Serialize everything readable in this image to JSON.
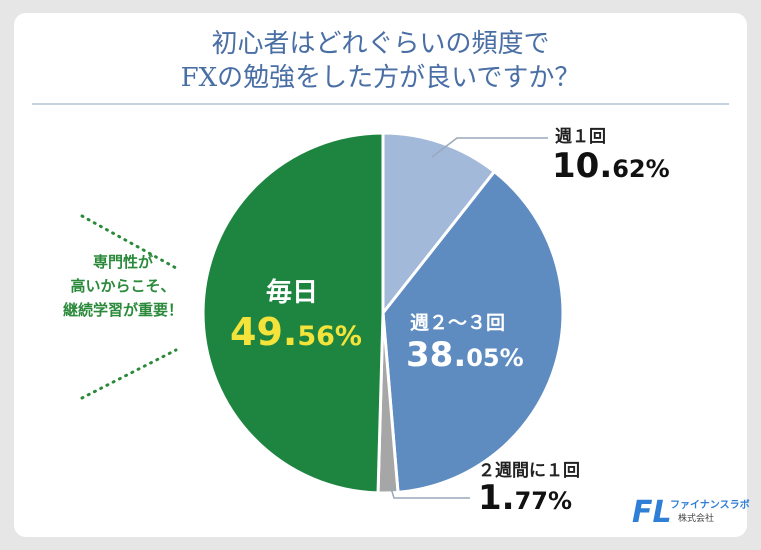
{
  "title_line1": "初心者はどれぐらいの頻度で",
  "title_line2": "FXの勉強をした方が良いですか？",
  "annotation": {
    "line1": "専門性が",
    "line2": "高いからこそ、",
    "line3": "継続学習が重要！"
  },
  "logo": {
    "brand": "ファイナンスラボ",
    "company": "株式会社",
    "mark": "FL"
  },
  "chart_data": {
    "type": "pie",
    "slices": [
      {
        "label": "週１回",
        "value": 10.62,
        "int": "10.",
        "dec": "62%",
        "color": "#a3b9d9"
      },
      {
        "label": "週２〜３回",
        "value": 38.05,
        "int": "38.",
        "dec": "05%",
        "color": "#5e8bc0"
      },
      {
        "label": "２週間に１回",
        "value": 1.77,
        "int": "1.",
        "dec": "77%",
        "color": "#a6a6a6"
      },
      {
        "label": "毎日",
        "value": 49.56,
        "int": "49.",
        "dec": "56%",
        "color": "#1e8540"
      }
    ],
    "colors": {
      "daily_value": "#f3e33a",
      "annotation": "#2a8a3a",
      "title": "#4a6fa5"
    }
  }
}
